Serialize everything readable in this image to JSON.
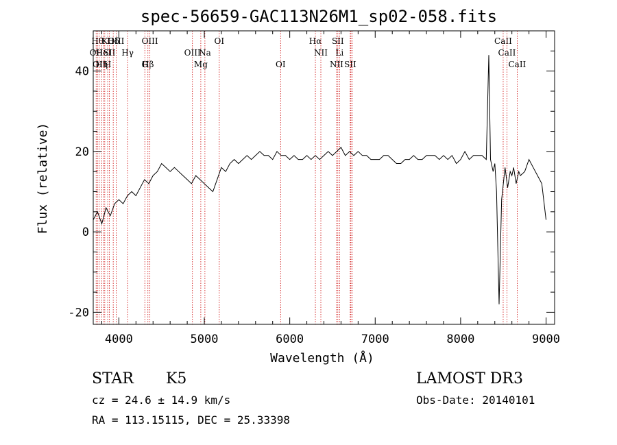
{
  "chart_data": {
    "type": "line",
    "title": "spec-56659-GAC113N26M1_sp02-058.fits",
    "xlabel": "Wavelength (Å)",
    "ylabel": "Flux (relative)",
    "xlim": [
      3700,
      9100
    ],
    "ylim": [
      -23,
      50
    ],
    "xticks": [
      4000,
      5000,
      6000,
      7000,
      8000,
      9000
    ],
    "yticks": [
      -20,
      0,
      20,
      40
    ],
    "grid": false,
    "line_color": "#000000",
    "marker_color": "#cc0000",
    "series": [
      {
        "x": [
          3700,
          3750,
          3800,
          3850,
          3900,
          3950,
          4000,
          4050,
          4100,
          4150,
          4200,
          4250,
          4300,
          4350,
          4400,
          4450,
          4500,
          4550,
          4600,
          4650,
          4700,
          4750,
          4800,
          4850,
          4900,
          4950,
          5000,
          5050,
          5100,
          5150,
          5200,
          5250,
          5300,
          5350,
          5400,
          5450,
          5500,
          5550,
          5600,
          5650,
          5700,
          5750,
          5800,
          5850,
          5900,
          5950,
          6000,
          6050,
          6100,
          6150,
          6200,
          6250,
          6300,
          6350,
          6400,
          6450,
          6500,
          6550,
          6600,
          6650,
          6700,
          6750,
          6800,
          6850,
          6900,
          6950,
          7000,
          7050,
          7100,
          7150,
          7200,
          7250,
          7300,
          7350,
          7400,
          7450,
          7500,
          7550,
          7600,
          7650,
          7700,
          7750,
          7800,
          7850,
          7900,
          7950,
          8000,
          8050,
          8100,
          8150,
          8200,
          8250,
          8300,
          8330,
          8350,
          8380,
          8400,
          8420,
          8450,
          8480,
          8500,
          8520,
          8550,
          8580,
          8600,
          8620,
          8650,
          8680,
          8700,
          8750,
          8800,
          8850,
          8900,
          8950,
          9000
        ],
        "y": [
          3,
          5,
          2,
          6,
          4,
          7,
          8,
          7,
          9,
          10,
          9,
          11,
          13,
          12,
          14,
          15,
          17,
          16,
          15,
          16,
          15,
          14,
          13,
          12,
          14,
          13,
          12,
          11,
          10,
          13,
          16,
          15,
          17,
          18,
          17,
          18,
          19,
          18,
          19,
          20,
          19,
          19,
          18,
          20,
          19,
          19,
          18,
          19,
          18,
          18,
          19,
          18,
          19,
          18,
          19,
          20,
          19,
          20,
          21,
          19,
          20,
          19,
          20,
          19,
          19,
          18,
          18,
          18,
          19,
          19,
          18,
          17,
          17,
          18,
          18,
          19,
          18,
          18,
          19,
          19,
          19,
          18,
          19,
          18,
          19,
          17,
          18,
          20,
          18,
          19,
          19,
          19,
          18,
          44,
          18,
          15,
          17,
          10,
          -18,
          8,
          12,
          16,
          11,
          15,
          14,
          16,
          12,
          15,
          14,
          15,
          18,
          16,
          14,
          12,
          3
        ]
      }
    ],
    "line_markers": [
      {
        "x": 3734,
        "label": "OII",
        "row": 2
      },
      {
        "x": 3750,
        "label": "Hθ",
        "row": 1
      },
      {
        "x": 3770,
        "label": "OII",
        "row": 3
      },
      {
        "x": 3798,
        "label": "Hη",
        "row": 3
      },
      {
        "x": 3820,
        "label": "HeI",
        "row": 2
      },
      {
        "x": 3835,
        "label": "K",
        "row": 1
      },
      {
        "x": 3869,
        "label": "H",
        "row": 3
      },
      {
        "x": 3889,
        "label": "SII",
        "row": 2
      },
      {
        "x": 3934,
        "label": "Hδ",
        "row": 1
      },
      {
        "x": 3968,
        "label": "OIII",
        "row": 1
      },
      {
        "x": 4102,
        "label": "Hγ",
        "row": 2
      },
      {
        "x": 4304,
        "label": "G",
        "row": 3
      },
      {
        "x": 4340,
        "label": "Hβ",
        "row": 3
      },
      {
        "x": 4363,
        "label": "OIII",
        "row": 1
      },
      {
        "x": 4861,
        "label": "OIII",
        "row": 2
      },
      {
        "x": 4959,
        "label": "Mg",
        "row": 3
      },
      {
        "x": 5007,
        "label": "Na",
        "row": 2
      },
      {
        "x": 5175,
        "label": "OI",
        "row": 1
      },
      {
        "x": 5893,
        "label": "OI",
        "row": 3
      },
      {
        "x": 6300,
        "label": "Hα",
        "row": 1
      },
      {
        "x": 6364,
        "label": "NII",
        "row": 2
      },
      {
        "x": 6548,
        "label": "NII",
        "row": 3
      },
      {
        "x": 6563,
        "label": "SII",
        "row": 1
      },
      {
        "x": 6583,
        "label": "Li",
        "row": 2
      },
      {
        "x": 6708,
        "label": "SII",
        "row": 3
      },
      {
        "x": 6716,
        "label": "",
        "row": 0
      },
      {
        "x": 6731,
        "label": "",
        "row": 0
      },
      {
        "x": 8498,
        "label": "CaII",
        "row": 1
      },
      {
        "x": 8542,
        "label": "CaII",
        "row": 2
      },
      {
        "x": 8662,
        "label": "CaII",
        "row": 3
      }
    ]
  },
  "info": {
    "object_class": "STAR",
    "subclass": "K5",
    "survey": "LAMOST DR3",
    "redshift_line": "cz = 24.6 ± 14.9 km/s",
    "obs_date_line": "Obs-Date: 20140101",
    "coords_line": "RA = 113.15115, DEC =  25.33398"
  }
}
